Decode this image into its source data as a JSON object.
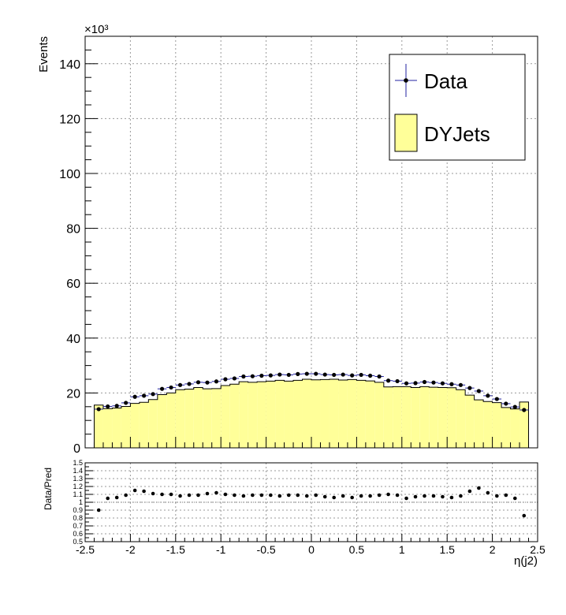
{
  "chart_data": {
    "type": "bar",
    "xlabel": "η(j2)",
    "main": {
      "ylabel": "Events",
      "y_multiplier": "×10³",
      "xlim": [
        -2.5,
        2.5
      ],
      "ylim": [
        0,
        150
      ],
      "y_ticks": [
        0,
        20,
        40,
        60,
        80,
        100,
        120,
        140
      ],
      "grid": true,
      "legend_position": "top-right",
      "series": [
        {
          "name": "DYJets",
          "kind": "filled-histogram",
          "fill_color": "#ffff99",
          "line_color": "#000000",
          "bin_edges": [
            -2.4,
            -2.3,
            -2.2,
            -2.1,
            -2.0,
            -1.9,
            -1.8,
            -1.7,
            -1.6,
            -1.5,
            -1.4,
            -1.3,
            -1.2,
            -1.1,
            -1.0,
            -0.9,
            -0.8,
            -0.7,
            -0.6,
            -0.5,
            -0.4,
            -0.3,
            -0.2,
            -0.1,
            0.0,
            0.1,
            0.2,
            0.3,
            0.4,
            0.5,
            0.6,
            0.7,
            0.8,
            0.9,
            1.0,
            1.1,
            1.2,
            1.3,
            1.4,
            1.5,
            1.6,
            1.7,
            1.8,
            1.9,
            2.0,
            2.1,
            2.2,
            2.3,
            2.4
          ],
          "values": [
            15.6,
            14.3,
            14.5,
            15.1,
            16.2,
            16.6,
            17.6,
            19.4,
            20.0,
            21.2,
            21.4,
            22.0,
            21.5,
            21.6,
            22.7,
            23.2,
            24.1,
            23.9,
            24.1,
            24.3,
            24.6,
            24.3,
            24.6,
            25.0,
            24.8,
            24.9,
            25.0,
            24.7,
            24.9,
            24.6,
            24.4,
            23.9,
            22.2,
            22.3,
            22.3,
            22.0,
            22.3,
            22.1,
            22.0,
            21.9,
            21.2,
            19.2,
            17.5,
            16.9,
            16.5,
            14.7,
            14.2,
            16.7
          ]
        },
        {
          "name": "Data",
          "kind": "points-with-errors",
          "color": "#000000",
          "error_color": "#2020a0",
          "x": [
            -2.35,
            -2.25,
            -2.15,
            -2.05,
            -1.95,
            -1.85,
            -1.75,
            -1.65,
            -1.55,
            -1.45,
            -1.35,
            -1.25,
            -1.15,
            -1.05,
            -0.95,
            -0.85,
            -0.75,
            -0.65,
            -0.55,
            -0.45,
            -0.35,
            -0.25,
            -0.15,
            -0.05,
            0.05,
            0.15,
            0.25,
            0.35,
            0.45,
            0.55,
            0.65,
            0.75,
            0.85,
            0.95,
            1.05,
            1.15,
            1.25,
            1.35,
            1.45,
            1.55,
            1.65,
            1.75,
            1.85,
            1.95,
            2.05,
            2.15,
            2.25,
            2.35
          ],
          "y": [
            14.1,
            15.1,
            15.3,
            16.4,
            18.6,
            19.0,
            19.6,
            21.5,
            22.0,
            22.9,
            23.3,
            23.9,
            23.8,
            24.2,
            25.0,
            25.3,
            26.0,
            26.1,
            26.3,
            26.4,
            26.7,
            26.6,
            26.9,
            27.0,
            27.0,
            26.7,
            26.6,
            26.7,
            26.4,
            26.6,
            26.3,
            26.0,
            24.5,
            24.3,
            23.5,
            23.6,
            24.0,
            23.8,
            23.5,
            23.2,
            22.9,
            21.8,
            20.7,
            19.0,
            17.8,
            16.1,
            14.9,
            13.8
          ]
        }
      ]
    },
    "ratio": {
      "ylabel": "Data/Pred",
      "xlim": [
        -2.5,
        2.5
      ],
      "ylim": [
        0.5,
        1.5
      ],
      "y_tick_labels": [
        "0.5",
        "0.6",
        "0.7",
        "0.8",
        "0.9",
        "1",
        "1.1",
        "1.2",
        "1.3",
        "1.4",
        "1.5"
      ],
      "x_tick_labels": [
        "-2.5",
        "-2",
        "-1.5",
        "-1",
        "-0.5",
        "0",
        "0.5",
        "1",
        "1.5",
        "2",
        "2.5"
      ],
      "grid": true,
      "x": [
        -2.35,
        -2.25,
        -2.15,
        -2.05,
        -1.95,
        -1.85,
        -1.75,
        -1.65,
        -1.55,
        -1.45,
        -1.35,
        -1.25,
        -1.15,
        -1.05,
        -0.95,
        -0.85,
        -0.75,
        -0.65,
        -0.55,
        -0.45,
        -0.35,
        -0.25,
        -0.15,
        -0.05,
        0.05,
        0.15,
        0.25,
        0.35,
        0.45,
        0.55,
        0.65,
        0.75,
        0.85,
        0.95,
        1.05,
        1.15,
        1.25,
        1.35,
        1.45,
        1.55,
        1.65,
        1.75,
        1.85,
        1.95,
        2.05,
        2.15,
        2.25,
        2.35
      ],
      "values": [
        0.9,
        1.05,
        1.06,
        1.09,
        1.15,
        1.14,
        1.11,
        1.1,
        1.1,
        1.08,
        1.09,
        1.09,
        1.11,
        1.12,
        1.1,
        1.09,
        1.08,
        1.09,
        1.09,
        1.09,
        1.08,
        1.09,
        1.09,
        1.08,
        1.09,
        1.07,
        1.06,
        1.08,
        1.06,
        1.08,
        1.08,
        1.09,
        1.1,
        1.09,
        1.05,
        1.07,
        1.08,
        1.08,
        1.07,
        1.06,
        1.08,
        1.14,
        1.18,
        1.12,
        1.08,
        1.09,
        1.05,
        0.83
      ]
    }
  }
}
